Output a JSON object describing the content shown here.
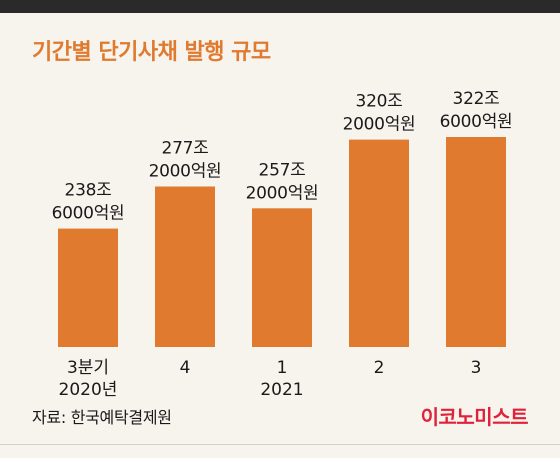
{
  "title": "기간별 단기사채 발행 규모",
  "source": "자료: 한국예탁결제원",
  "logo": "이코노미스트",
  "colors": {
    "bar": "#e07a2f",
    "title": "#e07a2f",
    "logo": "#e0213a",
    "background": "#f7f3ed"
  },
  "chart_data": {
    "type": "bar",
    "title": "기간별 단기사채 발행 규모",
    "xlabel": "",
    "ylabel": "",
    "categories": [
      "3분기 2020년",
      "4",
      "1 2021",
      "2",
      "3"
    ],
    "category_labels": [
      [
        "3분기",
        "2020년"
      ],
      [
        "4",
        ""
      ],
      [
        "1",
        "2021"
      ],
      [
        "2",
        ""
      ],
      [
        "3",
        ""
      ]
    ],
    "values": [
      2386000,
      2772000,
      2572000,
      3202000,
      3226000
    ],
    "value_unit": "억원",
    "value_labels": [
      [
        "238조",
        "6000억원"
      ],
      [
        "277조",
        "2000억원"
      ],
      [
        "257조",
        "2000억원"
      ],
      [
        "320조",
        "2000억원"
      ],
      [
        "322조",
        "6000억원"
      ]
    ],
    "ylim": [
      1300000,
      3226000
    ],
    "grid": false,
    "legend": "none"
  }
}
